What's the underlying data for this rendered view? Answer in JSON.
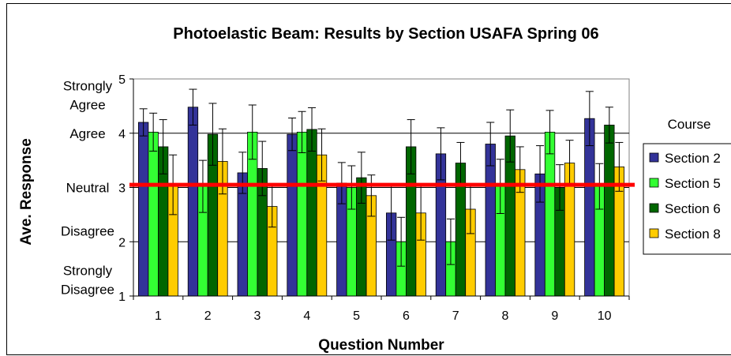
{
  "chart_data": {
    "type": "bar",
    "title": "Photoelastic Beam: Results by Section USAFA Spring 06",
    "xlabel": "Question Number",
    "ylabel": "Ave. Response",
    "ylim": [
      1,
      5
    ],
    "yticks": [
      1,
      2,
      3,
      4,
      5
    ],
    "grid": true,
    "categories": [
      "1",
      "2",
      "3",
      "4",
      "5",
      "6",
      "7",
      "8",
      "9",
      "10"
    ],
    "y_category_labels": [
      {
        "value": 4.7,
        "lines": [
          "Strongly",
          "Agree"
        ]
      },
      {
        "value": 4.0,
        "lines": [
          "Agree"
        ]
      },
      {
        "value": 3.0,
        "lines": [
          "Neutral"
        ]
      },
      {
        "value": 2.2,
        "lines": [
          "Disagree"
        ]
      },
      {
        "value": 1.3,
        "lines": [
          "Strongly",
          "Disagree"
        ]
      }
    ],
    "reference_line": {
      "value": 3.05,
      "color": "#ff0000"
    },
    "legend": {
      "title": "Course",
      "position": "right"
    },
    "series": [
      {
        "name": "Section 2",
        "color": "#333399",
        "values": [
          4.2,
          4.48,
          3.27,
          3.98,
          3.08,
          2.53,
          3.62,
          3.8,
          3.25,
          4.27
        ],
        "errors": [
          0.25,
          0.33,
          0.38,
          0.3,
          0.38,
          0.5,
          0.48,
          0.4,
          0.52,
          0.5
        ]
      },
      {
        "name": "Section 5",
        "color": "#33ff33",
        "values": [
          4.02,
          3.02,
          4.02,
          4.02,
          3.0,
          2.0,
          2.0,
          3.02,
          4.02,
          3.02
        ],
        "errors": [
          0.35,
          0.48,
          0.5,
          0.38,
          0.4,
          0.45,
          0.42,
          0.5,
          0.4,
          0.42
        ]
      },
      {
        "name": "Section 6",
        "color": "#006600",
        "values": [
          3.75,
          3.98,
          3.35,
          4.07,
          3.18,
          3.75,
          3.45,
          3.95,
          3.0,
          4.15
        ],
        "errors": [
          0.5,
          0.57,
          0.5,
          0.4,
          0.47,
          0.5,
          0.38,
          0.48,
          0.42,
          0.33
        ]
      },
      {
        "name": "Section 8",
        "color": "#ffcc00",
        "values": [
          3.05,
          3.48,
          2.65,
          3.6,
          2.85,
          2.53,
          2.6,
          3.33,
          3.45,
          3.38
        ],
        "errors": [
          0.55,
          0.6,
          0.38,
          0.48,
          0.38,
          0.5,
          0.45,
          0.42,
          0.42,
          0.45
        ]
      }
    ]
  }
}
